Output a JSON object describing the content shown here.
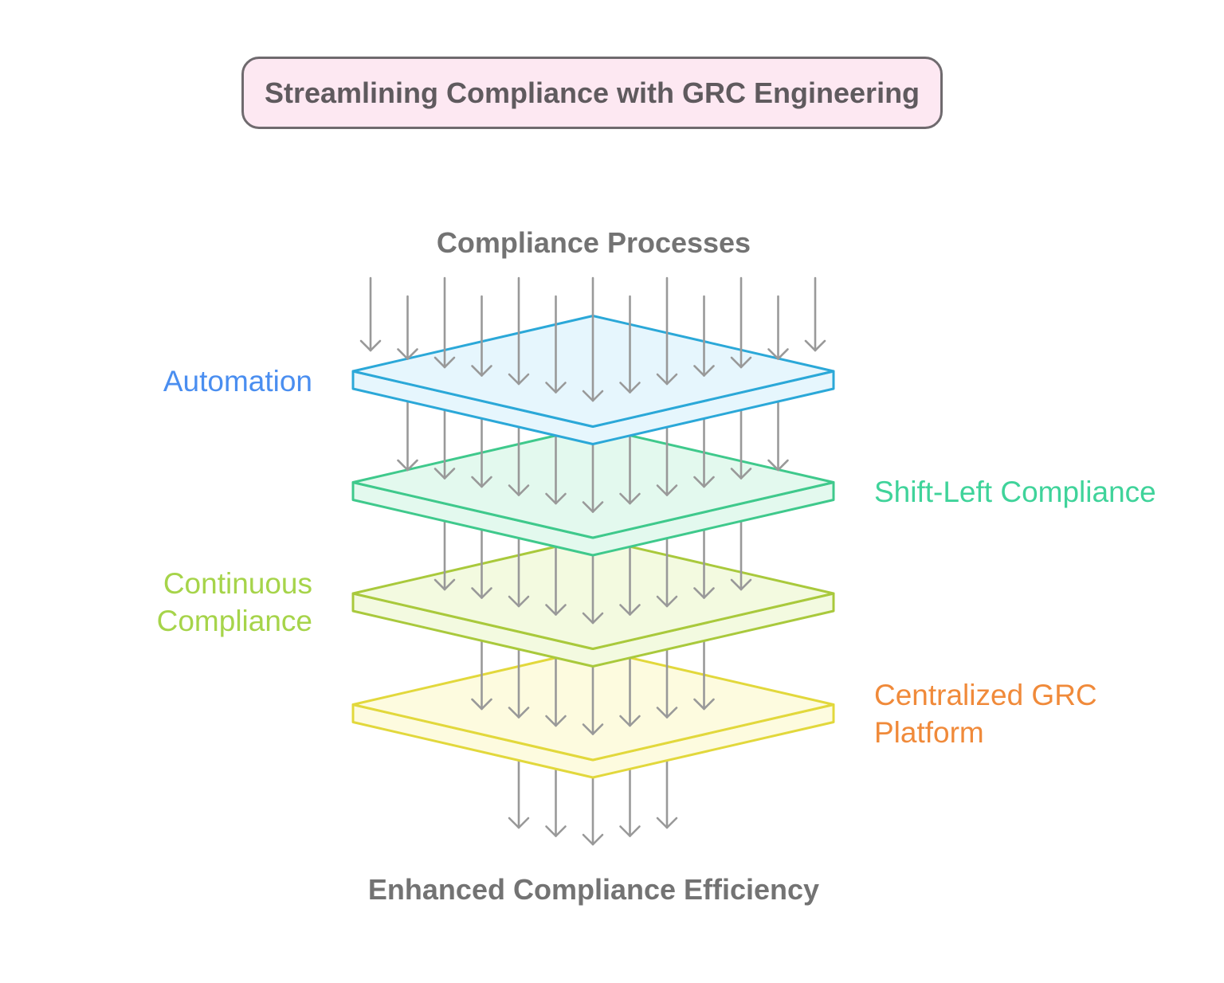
{
  "title": "Streamlining Compliance with GRC Engineering",
  "input_label": "Compliance Processes",
  "output_label": "Enhanced Compliance Efficiency",
  "layers": [
    {
      "label": "Automation",
      "side": "left",
      "label_color": "#4a8ef0",
      "stroke": "#2ba8d8",
      "fill": "#e6f6fd"
    },
    {
      "label": "Shift-Left Compliance",
      "side": "right",
      "label_color": "#3fd39a",
      "stroke": "#3fc98c",
      "fill": "#e3f9ee"
    },
    {
      "label": "Continuous Compliance",
      "side": "left",
      "label_color": "#a6d44a",
      "stroke": "#a9c93c",
      "fill": "#f3fae0"
    },
    {
      "label": "Centralized GRC Platform",
      "side": "right",
      "label_color": "#f08a3a",
      "stroke": "#e2d83c",
      "fill": "#fdfbdf"
    }
  ],
  "flow_arrow_counts": [
    13,
    11,
    9,
    7,
    5
  ],
  "arrow_color": "#999999"
}
